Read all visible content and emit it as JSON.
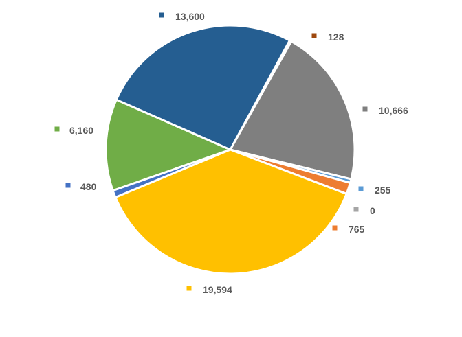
{
  "chart_data": {
    "type": "pie",
    "title": "",
    "slices": [
      {
        "value": 128,
        "label": "128",
        "color": "#9E480E"
      },
      {
        "value": 10666,
        "label": "10,666",
        "color": "#7F7F7F"
      },
      {
        "value": 255,
        "label": "255",
        "color": "#5B9BD5"
      },
      {
        "value": 0,
        "label": "0",
        "color": "#A5A5A5"
      },
      {
        "value": 765,
        "label": "765",
        "color": "#ED7D31"
      },
      {
        "value": 19594,
        "label": "19,594",
        "color": "#FFC000"
      },
      {
        "value": 480,
        "label": "480",
        "color": "#4472C4"
      },
      {
        "value": 6160,
        "label": "6,160",
        "color": "#70AD47"
      },
      {
        "value": 13600,
        "label": "13,600",
        "color": "#255E91"
      }
    ],
    "legend": "none",
    "data_labels": "outside-with-color-key"
  }
}
